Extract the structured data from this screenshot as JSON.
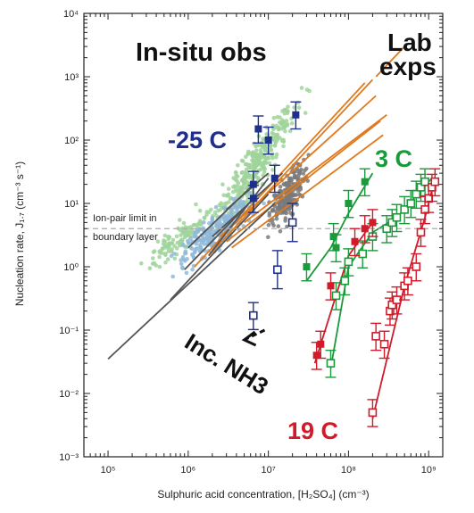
{
  "chart_data": {
    "type": "scatter",
    "xlabel": "Sulphuric acid concentration, [H₂SO₄] (cm⁻³)",
    "ylabel": "Nucleation rate, J₁.₇ (cm⁻³ s⁻¹)",
    "xlim": [
      50000,
      1500000000
    ],
    "ylim": [
      0.001,
      10000
    ],
    "xscale": "log",
    "yscale": "log",
    "x_ticks": [
      "10⁵",
      "10⁶",
      "10⁷",
      "10⁸",
      "10⁹"
    ],
    "y_ticks": [
      "10⁻³",
      "10⁻²",
      "10⁻¹",
      "10⁰",
      "10¹",
      "10²",
      "10³",
      "10⁴"
    ],
    "ion_pair_limit": {
      "y": 4.0,
      "label_line1": "Ion-pair limit in",
      "label_line2": "boundary layer",
      "color": "#aaaaaa"
    },
    "annotations": {
      "in_situ": "In-situ obs",
      "lab_line1": "Lab",
      "lab_line2": "exps",
      "minus25": "-25 C",
      "plus3": "3 C",
      "plus19": "19  C",
      "nh3": "Inc. NH3"
    },
    "colors": {
      "minus25": "#1f2f8c",
      "plus3": "#1a9a3a",
      "plus19": "#d11a2a",
      "green_obs": "#9fd39a",
      "blue_obs": "#8fb8d9",
      "grey_obs": "#7a7a7a",
      "lab_lines": "#e07a1f",
      "grey_lines": "#555555"
    },
    "series": [
      {
        "name": "-25 C",
        "filled": [
          [
            6500000.0,
            20
          ],
          [
            7500000.0,
            150
          ],
          [
            10000000.0,
            100
          ],
          [
            12000000.0,
            25
          ],
          [
            22000000.0,
            250
          ],
          [
            6500000.0,
            12
          ]
        ],
        "filled_err": [
          [
            0.6,
            1.6
          ],
          [
            0.6,
            1.6
          ],
          [
            0.6,
            1.6
          ],
          [
            0.6,
            1.6
          ],
          [
            0.6,
            1.6
          ],
          [
            0.6,
            1.6
          ]
        ],
        "open": [
          [
            6500000.0,
            0.17
          ],
          [
            13000000.0,
            0.9
          ],
          [
            20000000.0,
            5
          ]
        ],
        "open_err": [
          [
            0.6,
            1.6
          ],
          [
            0.5,
            2.0
          ],
          [
            0.5,
            2.0
          ]
        ]
      },
      {
        "name": "3 C",
        "filled": [
          [
            30000000.0,
            1.0
          ],
          [
            65000000.0,
            3
          ],
          [
            70000000.0,
            2
          ],
          [
            100000000.0,
            10
          ],
          [
            160000000.0,
            22
          ]
        ],
        "filled_lines": [
          [
            [
              30000000.0,
              0.6
            ],
            [
              60000000.0,
              2
            ],
            [
              100000000.0,
              7
            ],
            [
              200000000.0,
              30
            ]
          ]
        ],
        "open": [
          [
            60000000.0,
            0.03
          ],
          [
            70000000.0,
            0.35
          ],
          [
            90000000.0,
            0.6
          ],
          [
            100000000.0,
            1.2
          ],
          [
            150000000.0,
            1.6
          ],
          [
            200000000.0,
            3
          ],
          [
            300000000.0,
            4
          ],
          [
            350000000.0,
            5
          ],
          [
            400000000.0,
            6
          ],
          [
            500000000.0,
            8
          ],
          [
            600000000.0,
            10
          ],
          [
            700000000.0,
            14
          ],
          [
            800000000.0,
            18
          ],
          [
            900000000.0,
            22
          ]
        ],
        "open_lines": [
          [
            [
              60000000.0,
              0.025
            ],
            [
              100000000.0,
              1.0
            ],
            [
              200000000.0,
              3.5
            ],
            [
              400000000.0,
              6
            ],
            [
              1100000000.0,
              25
            ]
          ]
        ]
      },
      {
        "name": "19 C",
        "filled": [
          [
            40000000.0,
            0.04
          ],
          [
            45000000.0,
            0.06
          ],
          [
            60000000.0,
            0.5
          ],
          [
            120000000.0,
            2.5
          ],
          [
            160000000.0,
            4
          ],
          [
            200000000.0,
            5
          ]
        ],
        "filled_lines": [
          [
            [
              38000000.0,
              0.03
            ],
            [
              100000000.0,
              1.5
            ],
            [
              200000000.0,
              5
            ]
          ]
        ],
        "open": [
          [
            200000000.0,
            0.005
          ],
          [
            220000000.0,
            0.08
          ],
          [
            280000000.0,
            0.06
          ],
          [
            330000000.0,
            0.2
          ],
          [
            350000000.0,
            0.25
          ],
          [
            400000000.0,
            0.3
          ],
          [
            500000000.0,
            0.5
          ],
          [
            550000000.0,
            0.6
          ],
          [
            700000000.0,
            1
          ],
          [
            800000000.0,
            3.5
          ],
          [
            900000000.0,
            8
          ],
          [
            1000000000.0,
            12
          ],
          [
            1100000000.0,
            18
          ],
          [
            1200000000.0,
            22
          ]
        ],
        "open_lines": [
          [
            [
              200000000.0,
              0.004
            ],
            [
              500000000.0,
              0.5
            ],
            [
              900000000.0,
              6
            ],
            [
              1200000000.0,
              25
            ]
          ]
        ]
      }
    ],
    "lab_lines": [
      [
        [
          1200000.0,
          1
        ],
        [
          160000000.0,
          800
        ]
      ],
      [
        [
          1800000.0,
          1.5
        ],
        [
          200000000.0,
          900
        ]
      ],
      [
        [
          2500000.0,
          3
        ],
        [
          220000000.0,
          500
        ]
      ],
      [
        [
          3000000.0,
          2.5
        ],
        [
          250000000.0,
          200
        ]
      ],
      [
        [
          3500000.0,
          2
        ],
        [
          270000000.0,
          120
        ]
      ],
      [
        [
          5000000.0,
          5
        ],
        [
          300000000.0,
          250
        ]
      ],
      [
        [
          220000000.0,
          1000
        ],
        [
          500000000.0,
          3000
        ]
      ]
    ],
    "grey_lines": [
      [
        [
          100000.0,
          0.035
        ],
        [
          12000000.0,
          10
        ]
      ],
      [
        [
          600000.0,
          0.3
        ],
        [
          10000000.0,
          14
        ]
      ],
      [
        [
          900000.0,
          0.9
        ],
        [
          7000000.0,
          13
        ]
      ],
      [
        [
          1000000.0,
          2
        ],
        [
          6000000.0,
          18
        ]
      ],
      [
        [
          1800000.0,
          1.5
        ],
        [
          10000000.0,
          25
        ]
      ],
      [
        [
          2000000.0,
          3
        ],
        [
          15000000.0,
          30
        ]
      ],
      [
        [
          3000000.0,
          8
        ],
        [
          10000000.0,
          30
        ]
      ]
    ],
    "nh3_arrow": {
      "from": [
        9000000.0,
        0.1
      ],
      "to": [
        5000000.0,
        0.07
      ]
    }
  }
}
